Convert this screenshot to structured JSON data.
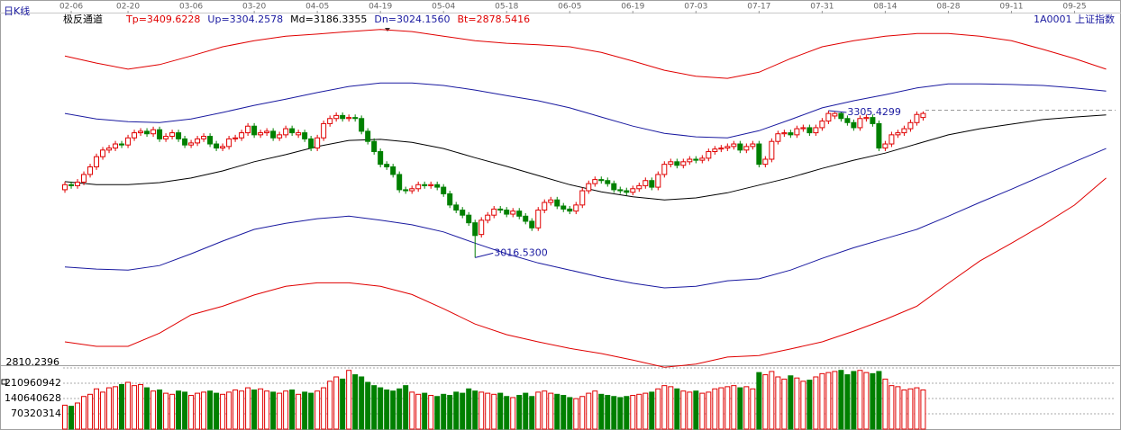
{
  "chart_data": [
    {
      "type": "candlestick",
      "title": "极反通道",
      "period_label": "日K线",
      "symbol_label": "1A0001 上证指数",
      "up_color": "#e00000",
      "down_color": "#008000",
      "xlim": [
        -10,
        166.5
      ],
      "ylim": [
        2810.2396,
        3470
      ],
      "yticks": [
        2810.2396
      ],
      "xticks": [
        {
          "value": 1,
          "label": "02-06"
        },
        {
          "value": 10,
          "label": "02-20"
        },
        {
          "value": 20,
          "label": "03-06"
        },
        {
          "value": 30,
          "label": "03-20"
        },
        {
          "value": 40,
          "label": "04-05"
        },
        {
          "value": 50,
          "label": "04-19"
        },
        {
          "value": 60,
          "label": "05-04"
        },
        {
          "value": 70,
          "label": "05-18"
        },
        {
          "value": 80,
          "label": "06-05"
        },
        {
          "value": 90,
          "label": "06-19"
        },
        {
          "value": 100,
          "label": "07-03"
        },
        {
          "value": 110,
          "label": "07-17"
        },
        {
          "value": 120,
          "label": "07-31"
        },
        {
          "value": 130,
          "label": "08-14"
        },
        {
          "value": 140,
          "label": "08-28"
        },
        {
          "value": 150,
          "label": "09-11"
        },
        {
          "value": 160,
          "label": "09-25"
        }
      ],
      "open": [
        3150,
        3160,
        3158,
        3165,
        3180,
        3195,
        3215,
        3228,
        3232,
        3240,
        3238,
        3252,
        3262,
        3265,
        3260,
        3268,
        3250,
        3255,
        3262,
        3250,
        3238,
        3242,
        3250,
        3255,
        3240,
        3232,
        3235,
        3250,
        3252,
        3262,
        3275,
        3258,
        3262,
        3265,
        3252,
        3258,
        3270,
        3258,
        3262,
        3250,
        3232,
        3252,
        3280,
        3290,
        3296,
        3290,
        3292,
        3290,
        3265,
        3245,
        3225,
        3200,
        3195,
        3180,
        3150,
        3148,
        3152,
        3160,
        3158,
        3160,
        3155,
        3142,
        3120,
        3110,
        3100,
        3085,
        3062,
        3090,
        3100,
        3112,
        3110,
        3102,
        3108,
        3098,
        3088,
        3075,
        3110,
        3125,
        3130,
        3118,
        3112,
        3108,
        3120,
        3148,
        3162,
        3170,
        3168,
        3162,
        3150,
        3148,
        3145,
        3152,
        3158,
        3168,
        3155,
        3180,
        3200,
        3205,
        3198,
        3205,
        3210,
        3208,
        3212,
        3225,
        3230,
        3232,
        3235,
        3240,
        3228,
        3235,
        3240,
        3200,
        3210,
        3245,
        3260,
        3262,
        3258,
        3270,
        3272,
        3262,
        3272,
        3285,
        3295,
        3300,
        3290,
        3282,
        3272,
        3290,
        3292,
        3280,
        3232,
        3240,
        3258,
        3262,
        3270,
        3282,
        3292
      ],
      "high": [
        3166,
        3166,
        3171,
        3186,
        3201,
        3221,
        3234,
        3238,
        3246,
        3246,
        3258,
        3268,
        3271,
        3271,
        3274,
        3274,
        3261,
        3268,
        3268,
        3256,
        3248,
        3256,
        3261,
        3261,
        3246,
        3241,
        3256,
        3258,
        3268,
        3281,
        3281,
        3268,
        3271,
        3271,
        3264,
        3276,
        3276,
        3268,
        3268,
        3256,
        3258,
        3286,
        3296,
        3302,
        3302,
        3298,
        3298,
        3296,
        3271,
        3251,
        3231,
        3206,
        3201,
        3186,
        3156,
        3158,
        3166,
        3166,
        3166,
        3166,
        3161,
        3148,
        3126,
        3116,
        3106,
        3091,
        3096,
        3106,
        3118,
        3118,
        3116,
        3114,
        3114,
        3104,
        3094,
        3116,
        3131,
        3136,
        3136,
        3124,
        3118,
        3126,
        3154,
        3168,
        3176,
        3176,
        3174,
        3168,
        3156,
        3154,
        3158,
        3164,
        3174,
        3174,
        3186,
        3206,
        3211,
        3211,
        3211,
        3216,
        3216,
        3218,
        3231,
        3236,
        3238,
        3241,
        3246,
        3246,
        3241,
        3246,
        3246,
        3216,
        3251,
        3266,
        3268,
        3268,
        3276,
        3278,
        3278,
        3278,
        3291,
        3305.4299,
        3303,
        3303,
        3296,
        3288,
        3296,
        3298,
        3298,
        3286,
        3246,
        3264,
        3268,
        3276,
        3288,
        3304,
        3304
      ],
      "low": [
        3144,
        3152,
        3152,
        3159,
        3174,
        3189,
        3209,
        3222,
        3226,
        3232,
        3232,
        3246,
        3256,
        3254,
        3254,
        3244,
        3244,
        3249,
        3244,
        3232,
        3232,
        3236,
        3244,
        3234,
        3226,
        3226,
        3229,
        3244,
        3246,
        3256,
        3252,
        3252,
        3256,
        3246,
        3246,
        3252,
        3256,
        3252,
        3244,
        3226,
        3226,
        3246,
        3274,
        3284,
        3284,
        3284,
        3284,
        3259,
        3239,
        3219,
        3194,
        3189,
        3174,
        3144,
        3142,
        3142,
        3146,
        3152,
        3152,
        3149,
        3136,
        3114,
        3104,
        3094,
        3079,
        3016.53,
        3056,
        3084,
        3094,
        3104,
        3096,
        3096,
        3092,
        3082,
        3069,
        3069,
        3104,
        3119,
        3112,
        3106,
        3102,
        3102,
        3114,
        3142,
        3156,
        3162,
        3156,
        3144,
        3142,
        3139,
        3139,
        3146,
        3152,
        3149,
        3149,
        3174,
        3194,
        3192,
        3192,
        3199,
        3202,
        3202,
        3206,
        3219,
        3224,
        3226,
        3229,
        3222,
        3222,
        3229,
        3194,
        3194,
        3204,
        3239,
        3254,
        3252,
        3252,
        3264,
        3256,
        3256,
        3266,
        3279,
        3289,
        3284,
        3276,
        3266,
        3266,
        3284,
        3274,
        3226,
        3226,
        3234,
        3252,
        3256,
        3264,
        3276,
        3286
      ],
      "close": [
        3160,
        3158,
        3165,
        3180,
        3195,
        3215,
        3228,
        3232,
        3240,
        3238,
        3252,
        3262,
        3265,
        3260,
        3268,
        3250,
        3255,
        3262,
        3250,
        3238,
        3242,
        3250,
        3255,
        3240,
        3232,
        3235,
        3250,
        3252,
        3262,
        3275,
        3258,
        3262,
        3265,
        3252,
        3258,
        3270,
        3262,
        3262,
        3250,
        3232,
        3252,
        3280,
        3290,
        3296,
        3290,
        3292,
        3290,
        3265,
        3245,
        3225,
        3200,
        3195,
        3180,
        3150,
        3148,
        3152,
        3160,
        3158,
        3160,
        3155,
        3142,
        3120,
        3110,
        3100,
        3085,
        3060,
        3090,
        3100,
        3112,
        3110,
        3102,
        3108,
        3098,
        3088,
        3075,
        3110,
        3125,
        3130,
        3118,
        3112,
        3108,
        3120,
        3148,
        3162,
        3170,
        3168,
        3162,
        3150,
        3148,
        3145,
        3152,
        3158,
        3168,
        3155,
        3180,
        3200,
        3205,
        3198,
        3205,
        3210,
        3208,
        3212,
        3225,
        3230,
        3232,
        3235,
        3240,
        3228,
        3235,
        3240,
        3200,
        3210,
        3245,
        3260,
        3262,
        3258,
        3270,
        3272,
        3262,
        3272,
        3285,
        3300,
        3300,
        3290,
        3282,
        3272,
        3290,
        3292,
        3280,
        3232,
        3240,
        3258,
        3262,
        3270,
        3282,
        3298,
        3300
      ],
      "series": [
        {
          "name": "Tp=3409.6228",
          "color": "#e00000",
          "x": [
            0,
            5,
            10,
            15,
            20,
            25,
            30,
            35,
            40,
            45,
            50,
            55,
            60,
            65,
            70,
            75,
            80,
            85,
            90,
            95,
            100,
            105,
            110,
            115,
            120,
            125,
            130,
            135,
            140,
            145,
            150,
            155,
            160,
            165
          ],
          "values": [
            3413,
            3399,
            3387,
            3396,
            3413,
            3431,
            3443,
            3452,
            3456,
            3461,
            3465,
            3461,
            3452,
            3443,
            3438,
            3435,
            3431,
            3420,
            3403,
            3385,
            3373,
            3369,
            3381,
            3408,
            3431,
            3443,
            3452,
            3457,
            3457,
            3452,
            3443,
            3426,
            3408,
            3387
          ]
        },
        {
          "name": "Up=3304.2578",
          "color": "#1a1aa0",
          "x": [
            0,
            5,
            10,
            15,
            20,
            25,
            30,
            35,
            40,
            45,
            50,
            55,
            60,
            65,
            70,
            75,
            80,
            85,
            90,
            95,
            100,
            105,
            110,
            115,
            120,
            125,
            130,
            135,
            140,
            145,
            150,
            155,
            160,
            165
          ],
          "values": [
            3300,
            3289,
            3284,
            3282,
            3289,
            3302,
            3316,
            3328,
            3341,
            3353,
            3360,
            3360,
            3355,
            3346,
            3335,
            3325,
            3311,
            3293,
            3275,
            3261,
            3254,
            3252,
            3266,
            3288,
            3311,
            3325,
            3337,
            3350,
            3358,
            3358,
            3357,
            3355,
            3350,
            3344
          ]
        },
        {
          "name": "Md=3186.3355",
          "color": "#000000",
          "x": [
            0,
            5,
            10,
            15,
            20,
            25,
            30,
            35,
            40,
            45,
            50,
            55,
            60,
            65,
            70,
            75,
            80,
            85,
            90,
            95,
            100,
            105,
            110,
            115,
            120,
            125,
            130,
            135,
            140,
            145,
            150,
            155,
            160,
            165
          ],
          "values": [
            3166,
            3160,
            3160,
            3164,
            3173,
            3187,
            3205,
            3219,
            3235,
            3247,
            3249,
            3243,
            3231,
            3213,
            3196,
            3178,
            3160,
            3146,
            3136,
            3130,
            3134,
            3144,
            3159,
            3174,
            3192,
            3208,
            3222,
            3240,
            3258,
            3270,
            3279,
            3288,
            3293,
            3297
          ]
        },
        {
          "name": "Dn=3024.1560",
          "color": "#1a1aa0",
          "x": [
            0,
            5,
            10,
            15,
            20,
            25,
            30,
            35,
            40,
            45,
            50,
            55,
            60,
            65,
            70,
            75,
            80,
            85,
            90,
            95,
            100,
            105,
            110,
            115,
            120,
            125,
            130,
            135,
            140,
            145,
            150,
            155,
            160,
            165
          ],
          "values": [
            2998,
            2994,
            2992,
            3001,
            3024,
            3049,
            3072,
            3084,
            3093,
            3098,
            3090,
            3081,
            3067,
            3045,
            3024,
            3006,
            2992,
            2978,
            2966,
            2957,
            2960,
            2971,
            2975,
            2992,
            3015,
            3036,
            3054,
            3072,
            3098,
            3125,
            3151,
            3178,
            3205,
            3231
          ]
        },
        {
          "name": "Bt=2878.5416",
          "color": "#e00000",
          "x": [
            0,
            5,
            10,
            15,
            20,
            25,
            30,
            35,
            40,
            45,
            50,
            55,
            60,
            65,
            70,
            75,
            80,
            85,
            90,
            95,
            100,
            105,
            110,
            115,
            120,
            125,
            130,
            135,
            140,
            145,
            150,
            155,
            160,
            165
          ],
          "values": [
            2851,
            2842,
            2842,
            2868,
            2904,
            2921,
            2943,
            2960,
            2967,
            2967,
            2960,
            2944,
            2916,
            2886,
            2865,
            2851,
            2838,
            2828,
            2815,
            2801,
            2807,
            2821,
            2824,
            2837,
            2851,
            2872,
            2895,
            2921,
            2966,
            3010,
            3045,
            3081,
            3120,
            3173
          ]
        }
      ],
      "annotations": [
        {
          "index": 121,
          "value": 3305.4299,
          "label": "3305.4299"
        },
        {
          "index": 65,
          "value": 3016.53,
          "label": "3016.5300"
        }
      ]
    },
    {
      "type": "bar",
      "ylim": [
        0,
        281281256
      ],
      "yticks": [
        70320314,
        140640628,
        210960942
      ],
      "grid": true,
      "values": [
        110000000,
        105000000,
        120000000,
        150000000,
        160000000,
        185000000,
        170000000,
        190000000,
        195000000,
        205000000,
        215000000,
        200000000,
        205000000,
        190000000,
        175000000,
        180000000,
        165000000,
        160000000,
        175000000,
        170000000,
        155000000,
        165000000,
        170000000,
        175000000,
        165000000,
        160000000,
        170000000,
        180000000,
        175000000,
        190000000,
        180000000,
        185000000,
        175000000,
        170000000,
        165000000,
        175000000,
        180000000,
        160000000,
        170000000,
        165000000,
        175000000,
        190000000,
        220000000,
        240000000,
        230000000,
        270000000,
        250000000,
        240000000,
        215000000,
        200000000,
        190000000,
        180000000,
        175000000,
        185000000,
        200000000,
        170000000,
        160000000,
        165000000,
        155000000,
        150000000,
        160000000,
        155000000,
        170000000,
        165000000,
        185000000,
        175000000,
        170000000,
        165000000,
        160000000,
        165000000,
        150000000,
        145000000,
        155000000,
        165000000,
        150000000,
        170000000,
        175000000,
        165000000,
        160000000,
        155000000,
        145000000,
        140000000,
        150000000,
        165000000,
        175000000,
        160000000,
        155000000,
        150000000,
        145000000,
        150000000,
        155000000,
        160000000,
        165000000,
        170000000,
        185000000,
        200000000,
        195000000,
        185000000,
        175000000,
        170000000,
        175000000,
        165000000,
        170000000,
        185000000,
        190000000,
        195000000,
        200000000,
        190000000,
        195000000,
        185000000,
        260000000,
        250000000,
        265000000,
        240000000,
        230000000,
        245000000,
        235000000,
        220000000,
        225000000,
        240000000,
        255000000,
        260000000,
        265000000,
        270000000,
        250000000,
        265000000,
        270000000,
        260000000,
        255000000,
        265000000,
        230000000,
        200000000,
        195000000,
        180000000,
        185000000,
        190000000,
        180000000
      ]
    }
  ]
}
